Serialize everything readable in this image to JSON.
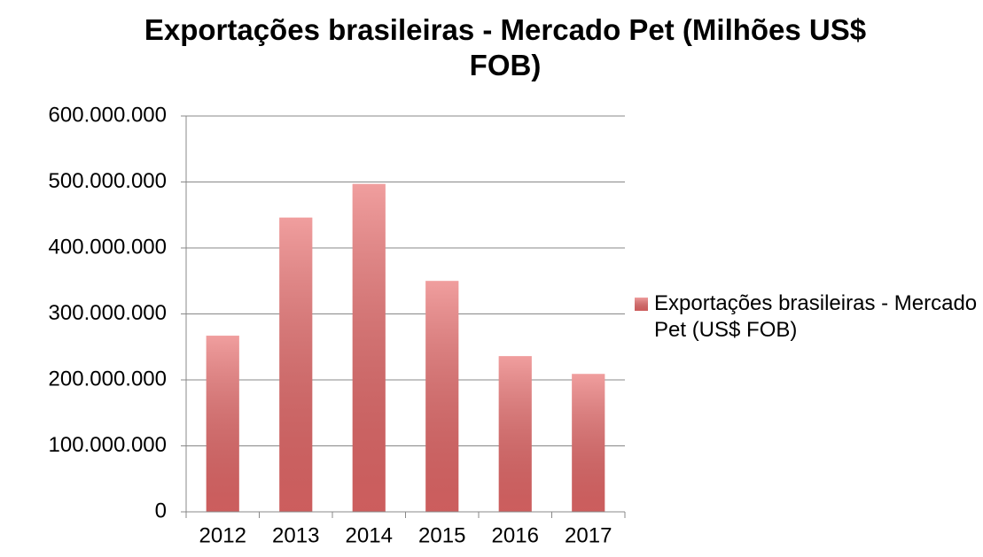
{
  "chart_data": {
    "type": "bar",
    "title": "Exportações brasileiras - Mercado Pet (Milhões US$ FOB)",
    "categories": [
      "2012",
      "2013",
      "2014",
      "2015",
      "2016",
      "2017"
    ],
    "series": [
      {
        "name": "Exportações brasileiras - Mercado Pet (US$ FOB)",
        "color": "#e86a6a",
        "values": [
          267000000,
          446000000,
          497000000,
          350000000,
          236000000,
          209000000
        ]
      }
    ],
    "ylim": [
      0,
      600000000
    ],
    "yticks": [
      0,
      {
        "value": 100000000,
        "label": "100.000.000"
      },
      {
        "value": 200000000,
        "label": "200.000.000"
      },
      {
        "value": 300000000,
        "label": "300.000.000"
      },
      {
        "value": 400000000,
        "label": "400.000.000"
      },
      {
        "value": 500000000,
        "label": "500.000.000"
      },
      {
        "value": 600000000,
        "label": "600.000.000"
      }
    ],
    "grid": true,
    "legend": "right"
  }
}
